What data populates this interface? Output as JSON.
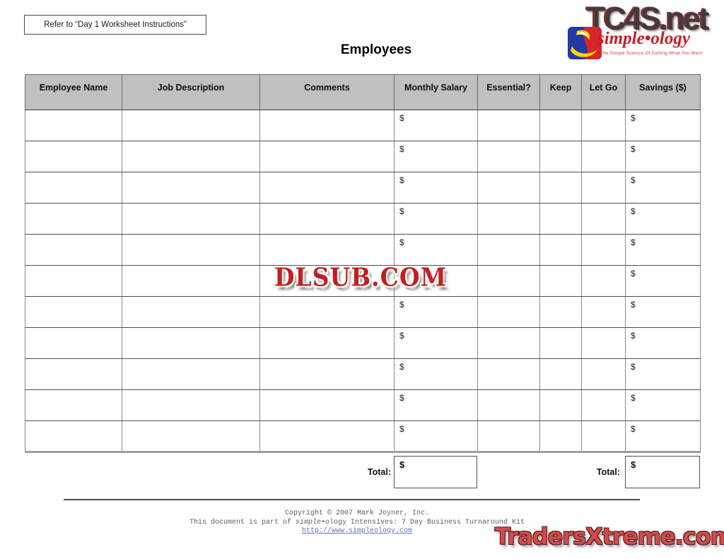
{
  "header": {
    "instruction": "Refer to “Day 1 Worksheet Instructions”",
    "title": "Employees"
  },
  "logo": {
    "site": "TC4S.net",
    "brand": "simple•ology",
    "tagline": "The Simple Science Of Getting What You Want",
    "colors": {
      "site_text": "#413c3b",
      "brand_red": "#cc1b21",
      "square_blue": "#2438a8",
      "square_red": "#d6252b",
      "swoosh_yellow": "#ffd400"
    }
  },
  "table": {
    "header_bg": "#c0c0c0",
    "headers": [
      "Employee Name",
      "Job Description",
      "Comments",
      "Monthly Salary",
      "Essential?",
      "Keep",
      "Let Go",
      "Savings ($)"
    ],
    "rows": [
      {
        "employee_name": "",
        "job_description": "",
        "comments": "",
        "monthly_salary": "$",
        "essential": "",
        "keep": "",
        "let_go": "",
        "savings": "$"
      },
      {
        "employee_name": "",
        "job_description": "",
        "comments": "",
        "monthly_salary": "$",
        "essential": "",
        "keep": "",
        "let_go": "",
        "savings": "$"
      },
      {
        "employee_name": "",
        "job_description": "",
        "comments": "",
        "monthly_salary": "$",
        "essential": "",
        "keep": "",
        "let_go": "",
        "savings": "$"
      },
      {
        "employee_name": "",
        "job_description": "",
        "comments": "",
        "monthly_salary": "$",
        "essential": "",
        "keep": "",
        "let_go": "",
        "savings": "$"
      },
      {
        "employee_name": "",
        "job_description": "",
        "comments": "",
        "monthly_salary": "$",
        "essential": "",
        "keep": "",
        "let_go": "",
        "savings": "$"
      },
      {
        "employee_name": "",
        "job_description": "",
        "comments": "",
        "monthly_salary": "$",
        "essential": "",
        "keep": "",
        "let_go": "",
        "savings": "$"
      },
      {
        "employee_name": "",
        "job_description": "",
        "comments": "",
        "monthly_salary": "$",
        "essential": "",
        "keep": "",
        "let_go": "",
        "savings": "$"
      },
      {
        "employee_name": "",
        "job_description": "",
        "comments": "",
        "monthly_salary": "$",
        "essential": "",
        "keep": "",
        "let_go": "",
        "savings": "$"
      },
      {
        "employee_name": "",
        "job_description": "",
        "comments": "",
        "monthly_salary": "$",
        "essential": "",
        "keep": "",
        "let_go": "",
        "savings": "$"
      },
      {
        "employee_name": "",
        "job_description": "",
        "comments": "",
        "monthly_salary": "$",
        "essential": "",
        "keep": "",
        "let_go": "",
        "savings": "$"
      },
      {
        "employee_name": "",
        "job_description": "",
        "comments": "",
        "monthly_salary": "$",
        "essential": "",
        "keep": "",
        "let_go": "",
        "savings": "$"
      }
    ]
  },
  "totals": {
    "salary_label": "Total:",
    "salary_value": "$",
    "savings_label": "Total:",
    "savings_value": "$"
  },
  "footer": {
    "line1": "Copyright © 2007 Mark Joyner, Inc.",
    "line2_prefix": "This document is part of ",
    "line2_italic": "simple",
    "line2_rest": "•ology Intensives: 7 Day Business Turnaround Kit",
    "link": "http://www.simpleology.com",
    "link_color": "#6674c4"
  },
  "watermarks": {
    "center": "DLSUB.COM",
    "center_color": "#c41f1f",
    "bottom_right": "TradersXtreme.com",
    "bottom_right_color": "#cc4d4d"
  }
}
